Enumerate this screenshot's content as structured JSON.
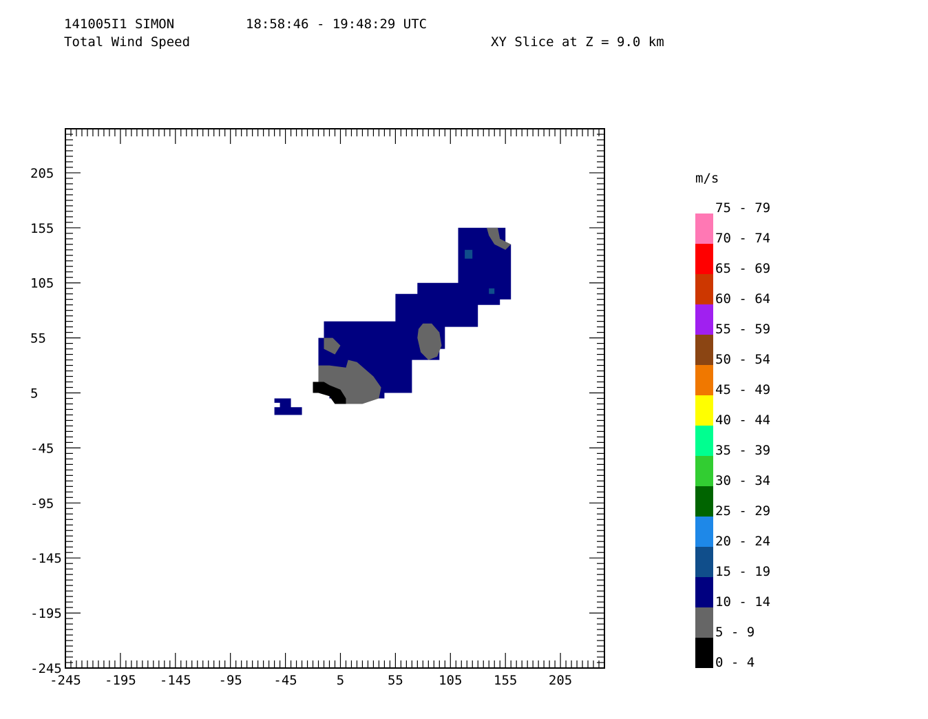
{
  "header": {
    "case_id": "141005I1 SIMON",
    "time_range": "18:58:46 - 19:48:29 UTC",
    "field_name": "Total Wind Speed",
    "slice_label": "XY Slice at Z = 9.0 km"
  },
  "chart_data": {
    "type": "heatmap",
    "x_ticks": [
      "-245",
      "-195",
      "-145",
      "-95",
      "-45",
      "5",
      "55",
      "105",
      "155",
      "205"
    ],
    "y_ticks": [
      "205",
      "155",
      "105",
      "55",
      "5",
      "-45",
      "-95",
      "-145",
      "-195",
      "-245"
    ],
    "xlim": [
      -245,
      245
    ],
    "ylim": [
      -245,
      245
    ],
    "legend_units": "m/s",
    "legend": [
      {
        "label": "75 - 79",
        "color": "#ff78b4"
      },
      {
        "label": "70 - 74",
        "color": "#ff0000"
      },
      {
        "label": "65 - 69",
        "color": "#cd3700"
      },
      {
        "label": "60 - 64",
        "color": "#a020f0"
      },
      {
        "label": "55 - 59",
        "color": "#8b4513"
      },
      {
        "label": "50 - 54",
        "color": "#f07800"
      },
      {
        "label": "45 - 49",
        "color": "#ffff00"
      },
      {
        "label": "40 - 44",
        "color": "#00ff90"
      },
      {
        "label": "35 - 39",
        "color": "#32cd32"
      },
      {
        "label": "30 - 34",
        "color": "#006400"
      },
      {
        "label": "25 - 29",
        "color": "#1e88e8"
      },
      {
        "label": "20 - 24",
        "color": "#104e8b"
      },
      {
        "label": "15 - 19",
        "color": "#000080"
      },
      {
        "label": "10 - 14",
        "color": "#666666"
      },
      {
        "label": "5 - 9",
        "color": "#000000"
      },
      {
        "label": "0 - 4",
        "color": ""
      }
    ],
    "regions": [
      {
        "name": "main-band",
        "value_bin": "20 - 24",
        "polygon": [
          [
            -5,
            70
          ],
          [
            55,
            70
          ],
          [
            55,
            95
          ],
          [
            75,
            95
          ],
          [
            75,
            105
          ],
          [
            112,
            105
          ],
          [
            112,
            155
          ],
          [
            155,
            155
          ],
          [
            155,
            140
          ],
          [
            160,
            140
          ],
          [
            160,
            90
          ],
          [
            150,
            90
          ],
          [
            150,
            85
          ],
          [
            130,
            85
          ],
          [
            130,
            65
          ],
          [
            100,
            65
          ],
          [
            100,
            45
          ],
          [
            95,
            45
          ],
          [
            95,
            35
          ],
          [
            70,
            35
          ],
          [
            70,
            5
          ],
          [
            45,
            5
          ],
          [
            45,
            0
          ],
          [
            -5,
            0
          ],
          [
            -5,
            10
          ],
          [
            -15,
            10
          ],
          [
            -15,
            55
          ],
          [
            -10,
            55
          ],
          [
            -10,
            70
          ]
        ]
      },
      {
        "name": "north-blob",
        "value_bin": "20 - 24",
        "polygon": [
          [
            112,
            140
          ],
          [
            118,
            140
          ],
          [
            118,
            130
          ],
          [
            112,
            130
          ]
        ]
      },
      {
        "name": "south-blob",
        "value_bin": "20 - 24",
        "polygon": [
          [
            -55,
            0
          ],
          [
            -40,
            0
          ],
          [
            -40,
            -8
          ],
          [
            -30,
            -8
          ],
          [
            -30,
            -15
          ],
          [
            -55,
            -15
          ],
          [
            -55,
            -8
          ],
          [
            -50,
            -8
          ],
          [
            -50,
            -4
          ],
          [
            -55,
            -4
          ]
        ]
      },
      {
        "name": "inner-core",
        "value_bin": "15 - 19",
        "polygon": [
          [
            80,
            68
          ],
          [
            88,
            68
          ],
          [
            95,
            60
          ],
          [
            97,
            48
          ],
          [
            93,
            38
          ],
          [
            85,
            35
          ],
          [
            78,
            42
          ],
          [
            75,
            55
          ],
          [
            76,
            63
          ]
        ]
      },
      {
        "name": "southwest-core",
        "value_bin": "15 - 19",
        "polygon": [
          [
            -15,
            30
          ],
          [
            -5,
            30
          ],
          [
            10,
            28
          ],
          [
            12,
            35
          ],
          [
            20,
            33
          ],
          [
            35,
            20
          ],
          [
            42,
            10
          ],
          [
            40,
            0
          ],
          [
            25,
            -5
          ],
          [
            0,
            -5
          ],
          [
            -5,
            2
          ],
          [
            -15,
            10
          ]
        ]
      },
      {
        "name": "northwest-core",
        "value_bin": "15 - 19",
        "polygon": [
          [
            -10,
            55
          ],
          [
            -2,
            55
          ],
          [
            5,
            48
          ],
          [
            0,
            40
          ],
          [
            -10,
            45
          ]
        ]
      },
      {
        "name": "northeast-edge",
        "value_bin": "15 - 19",
        "polygon": [
          [
            138,
            155
          ],
          [
            148,
            155
          ],
          [
            150,
            145
          ],
          [
            160,
            140
          ],
          [
            155,
            135
          ],
          [
            145,
            140
          ],
          [
            140,
            148
          ]
        ]
      },
      {
        "name": "southwest-pocket",
        "value_bin": "10 - 14",
        "polygon": [
          [
            -20,
            15
          ],
          [
            -10,
            15
          ],
          [
            -5,
            12
          ],
          [
            5,
            8
          ],
          [
            10,
            0
          ],
          [
            10,
            -5
          ],
          [
            0,
            -5
          ],
          [
            -5,
            2
          ],
          [
            -15,
            5
          ],
          [
            -20,
            5
          ]
        ]
      },
      {
        "name": "small-green-north",
        "value_bin": "25 - 29",
        "polygon": [
          [
            118,
            135
          ],
          [
            125,
            135
          ],
          [
            125,
            127
          ],
          [
            118,
            127
          ]
        ]
      },
      {
        "name": "small-green-east",
        "value_bin": "25 - 29",
        "polygon": [
          [
            140,
            100
          ],
          [
            145,
            100
          ],
          [
            145,
            95
          ],
          [
            140,
            95
          ]
        ]
      }
    ]
  }
}
